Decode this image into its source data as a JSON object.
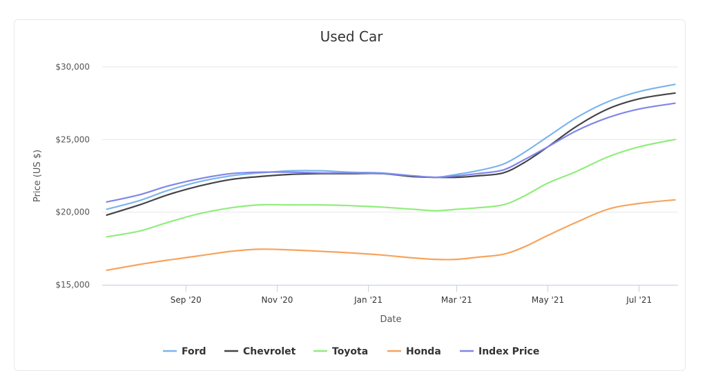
{
  "chart_data": {
    "type": "line",
    "title": "Used Car",
    "xlabel": "Date",
    "ylabel": "Price (US $)",
    "ylim": [
      15000,
      30000
    ],
    "y_ticks": [
      {
        "value": 15000,
        "label": "$15,000"
      },
      {
        "value": 20000,
        "label": "$20,000"
      },
      {
        "value": 25000,
        "label": "$25,000"
      },
      {
        "value": 30000,
        "label": "$30,000"
      }
    ],
    "xlim": [
      "2020-07-07",
      "2021-07-27"
    ],
    "x_ticks": [
      {
        "value": "2020-09-01",
        "label": "Sep '20"
      },
      {
        "value": "2020-11-01",
        "label": "Nov '20"
      },
      {
        "value": "2021-01-01",
        "label": "Jan '21"
      },
      {
        "value": "2021-03-01",
        "label": "Mar '21"
      },
      {
        "value": "2021-05-01",
        "label": "May '21"
      },
      {
        "value": "2021-07-01",
        "label": "Jul '21"
      }
    ],
    "x": [
      "2020-07-10",
      "2020-08-01",
      "2020-08-20",
      "2020-09-10",
      "2020-10-01",
      "2020-10-20",
      "2020-11-10",
      "2020-12-01",
      "2020-12-20",
      "2021-01-10",
      "2021-01-31",
      "2021-02-15",
      "2021-03-01",
      "2021-03-15",
      "2021-04-01",
      "2021-04-15",
      "2021-05-01",
      "2021-05-20",
      "2021-06-10",
      "2021-07-01",
      "2021-07-25"
    ],
    "series": [
      {
        "name": "Ford",
        "color": "#7cb5ec",
        "values": [
          20200,
          20800,
          21500,
          22100,
          22500,
          22700,
          22850,
          22850,
          22750,
          22700,
          22500,
          22400,
          22600,
          22850,
          23300,
          24100,
          25200,
          26500,
          27600,
          28300,
          28800
        ]
      },
      {
        "name": "Chevrolet",
        "color": "#434348",
        "values": [
          19800,
          20500,
          21200,
          21800,
          22250,
          22450,
          22600,
          22650,
          22650,
          22650,
          22450,
          22400,
          22400,
          22500,
          22700,
          23400,
          24500,
          25900,
          27100,
          27800,
          28200
        ]
      },
      {
        "name": "Toyota",
        "color": "#90ed7d",
        "values": [
          18300,
          18700,
          19300,
          19900,
          20300,
          20500,
          20500,
          20500,
          20450,
          20350,
          20200,
          20100,
          20200,
          20300,
          20500,
          21100,
          22000,
          22800,
          23800,
          24500,
          25000
        ]
      },
      {
        "name": "Honda",
        "color": "#f7a35c",
        "values": [
          16000,
          16400,
          16700,
          17000,
          17300,
          17450,
          17400,
          17300,
          17200,
          17050,
          16850,
          16750,
          16750,
          16900,
          17100,
          17600,
          18400,
          19300,
          20200,
          20600,
          20850
        ]
      },
      {
        "name": "Index Price",
        "color": "#8085e9",
        "values": [
          20700,
          21200,
          21800,
          22300,
          22650,
          22750,
          22750,
          22700,
          22700,
          22650,
          22500,
          22400,
          22500,
          22650,
          22900,
          23600,
          24500,
          25600,
          26500,
          27100,
          27500
        ]
      }
    ],
    "legend_position": "bottom-center",
    "grid": true
  }
}
